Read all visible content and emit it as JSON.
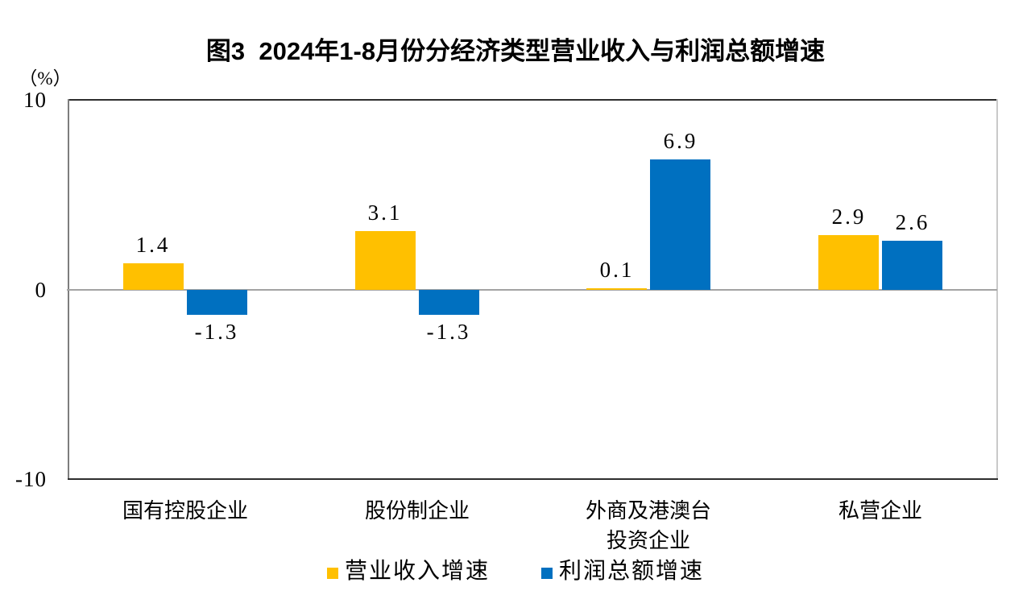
{
  "chart_data": {
    "type": "bar",
    "title": "图3  2024年1-8月份分经济类型营业收入与利润总额增速",
    "unit_label": "（%）",
    "categories": [
      "国有控股企业",
      "股份制企业",
      "外商及港澳台\n投资企业",
      "私营企业"
    ],
    "series": [
      {
        "name": "营业收入增速",
        "color": "#FFC000",
        "values": [
          1.4,
          3.1,
          0.1,
          2.9
        ]
      },
      {
        "name": "利润总额增速",
        "color": "#0070C0",
        "values": [
          -1.3,
          -1.3,
          6.9,
          2.6
        ]
      }
    ],
    "ylim": [
      -10,
      10
    ],
    "yticks": [
      10,
      0,
      -10
    ],
    "xlabel": "",
    "ylabel": "（%）",
    "grid": false,
    "zero_line": true,
    "legend_position": "bottom",
    "value_labels": true,
    "colors": {
      "revenue_bar": "#FFC000",
      "profit_bar": "#0070C0",
      "zero_line": "#A3A3A3",
      "frame_dark": "#2E2E2E",
      "axis_gray": "#7D7D7D",
      "frame_light": "#C9C9C9"
    }
  }
}
